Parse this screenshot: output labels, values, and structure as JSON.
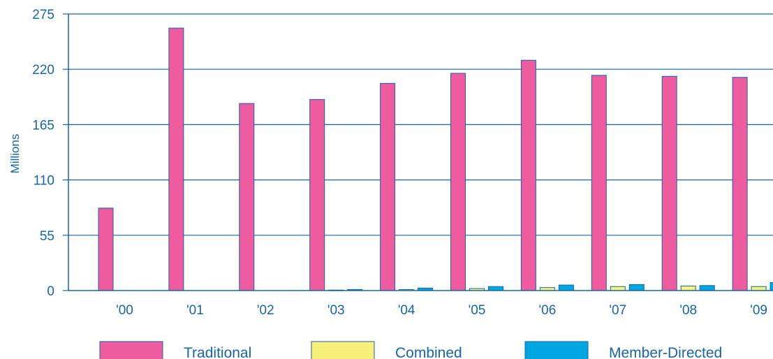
{
  "chart_data": {
    "type": "bar",
    "title": "",
    "xlabel": "",
    "ylabel": "Millions",
    "ylim": [
      0,
      275
    ],
    "yticks": [
      0,
      55,
      110,
      165,
      220,
      275
    ],
    "categories": [
      "'00",
      "'01",
      "'02",
      "'03",
      "'04",
      "'05",
      "'06",
      "'07",
      "'08",
      "'09"
    ],
    "grid": "horizontal",
    "legend_position": "bottom",
    "series": [
      {
        "name": "Traditional",
        "color": "#ee5b9f",
        "values": [
          82,
          261,
          186,
          190,
          206,
          216,
          229,
          214,
          213,
          212
        ]
      },
      {
        "name": "Combined",
        "color": "#f7f17b",
        "values": [
          0,
          0,
          0,
          0.5,
          1,
          2,
          3,
          4,
          4.5,
          4
        ]
      },
      {
        "name": "Member-Directed",
        "color": "#00a6e0",
        "values": [
          0,
          0,
          0,
          1,
          2.5,
          4,
          5.5,
          6,
          5,
          8
        ]
      }
    ],
    "axis_color": "#1565a8",
    "bar_border_color": "#1565a8"
  }
}
